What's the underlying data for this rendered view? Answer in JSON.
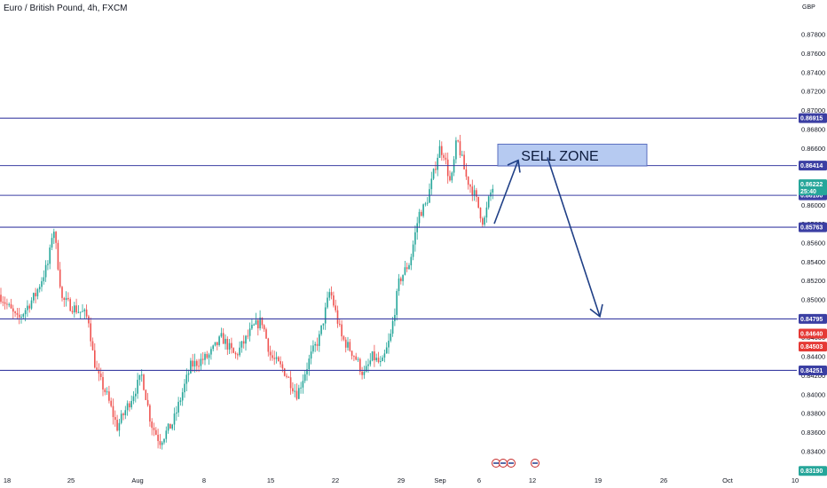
{
  "header": {
    "title": "Euro / British Pound, 4h, FXCM",
    "currency": "GBP"
  },
  "zone": {
    "label": "SELL ZONE",
    "price_top": 0.8664,
    "price_bottom": 0.8641
  },
  "colors": {
    "up": "#26a69a",
    "down": "#ef5350",
    "level": "#3b3fa3",
    "zone_fill": "#a9c1ee",
    "zone_border": "#5b6fc0",
    "arrow": "#1f3f86",
    "current": "#26a69a",
    "red_tag": "#e53935"
  },
  "chart_data": {
    "type": "candlestick",
    "title": "Euro / British Pound, 4h, FXCM",
    "ylim": [
      0.8315,
      0.8805
    ],
    "x_ticks": [
      "18",
      "25",
      "Aug",
      "8",
      "15",
      "22",
      "29",
      "Sep",
      "6",
      "12",
      "19",
      "26",
      "Oct",
      "10"
    ],
    "y_ticks": [
      "0.87800",
      "0.87600",
      "0.87400",
      "0.87200",
      "0.87000",
      "0.86800",
      "0.86600",
      "0.86400",
      "0.86200",
      "0.86000",
      "0.85800",
      "0.85600",
      "0.85400",
      "0.85200",
      "0.85000",
      "0.84800",
      "0.84600",
      "0.84400",
      "0.84200",
      "0.84000",
      "0.83800",
      "0.83600",
      "0.83400",
      "0.83200"
    ],
    "horizontal_levels": [
      {
        "price": 0.86915,
        "label": "0.86915"
      },
      {
        "price": 0.86414,
        "label": "0.86414"
      },
      {
        "price": 0.861,
        "label": "0.86100"
      },
      {
        "price": 0.85763,
        "label": "0.85763"
      },
      {
        "price": 0.84795,
        "label": "0.84795"
      },
      {
        "price": 0.84251,
        "label": "0.84251"
      }
    ],
    "price_tags": [
      {
        "price": 0.86222,
        "label": "0.86222",
        "sub": "25:40",
        "kind": "current"
      },
      {
        "price": 0.8464,
        "label": "0.84640",
        "kind": "red"
      },
      {
        "price": 0.84503,
        "label": "0.84503",
        "kind": "red"
      },
      {
        "price": 0.8319,
        "label": "0.83190",
        "kind": "current"
      }
    ],
    "price_path": [
      [
        0,
        0.8505
      ],
      [
        20,
        0.8478
      ],
      [
        40,
        0.8505
      ],
      [
        55,
        0.854
      ],
      [
        60,
        0.858
      ],
      [
        70,
        0.85
      ],
      [
        85,
        0.849
      ],
      [
        95,
        0.8485
      ],
      [
        100,
        0.8478
      ],
      [
        105,
        0.844
      ],
      [
        110,
        0.842
      ],
      [
        120,
        0.84
      ],
      [
        132,
        0.8365
      ],
      [
        145,
        0.839
      ],
      [
        160,
        0.842
      ],
      [
        170,
        0.837
      ],
      [
        180,
        0.835
      ],
      [
        195,
        0.837
      ],
      [
        205,
        0.84
      ],
      [
        215,
        0.843
      ],
      [
        235,
        0.844
      ],
      [
        250,
        0.846
      ],
      [
        265,
        0.844
      ],
      [
        285,
        0.847
      ],
      [
        295,
        0.8478
      ],
      [
        305,
        0.844
      ],
      [
        320,
        0.8425
      ],
      [
        335,
        0.84
      ],
      [
        350,
        0.844
      ],
      [
        360,
        0.846
      ],
      [
        372,
        0.851
      ],
      [
        385,
        0.846
      ],
      [
        400,
        0.844
      ],
      [
        410,
        0.842
      ],
      [
        420,
        0.844
      ],
      [
        430,
        0.843
      ],
      [
        440,
        0.846
      ],
      [
        450,
        0.852
      ],
      [
        462,
        0.854
      ],
      [
        472,
        0.859
      ],
      [
        480,
        0.86
      ],
      [
        488,
        0.863
      ],
      [
        495,
        0.866
      ],
      [
        500,
        0.8655
      ],
      [
        508,
        0.862
      ],
      [
        515,
        0.867
      ],
      [
        525,
        0.863
      ],
      [
        535,
        0.861
      ],
      [
        545,
        0.858
      ],
      [
        552,
        0.861
      ],
      [
        557,
        0.8622
      ]
    ],
    "x_tick_positions": [
      8,
      80,
      155,
      230,
      305,
      378,
      452,
      496,
      540,
      600,
      674,
      748,
      820,
      896
    ]
  }
}
